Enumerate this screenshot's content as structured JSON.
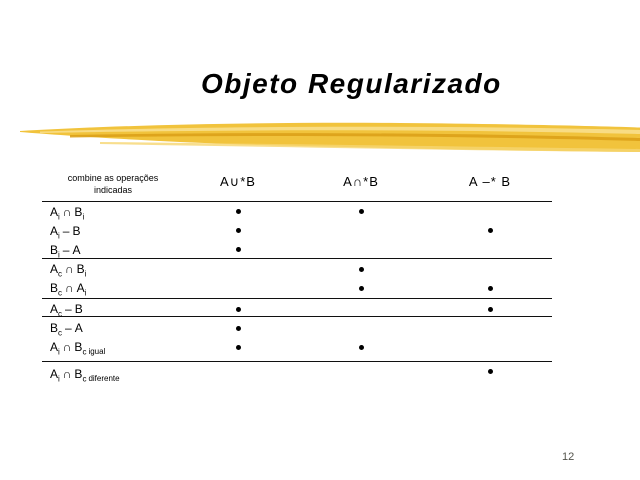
{
  "title": "Objeto Regularizado",
  "page_number": "12",
  "colors": {
    "brush_gold": "#F1C33C",
    "brush_highlight": "#F8DF8C",
    "brush_dark": "#DCA118",
    "brush_pale": "#F6D671",
    "page_number_gray": "#52524A",
    "text_black": "#000000"
  },
  "table": {
    "col1_header_line1": "combine as operações",
    "col1_header_line2": "indicadas",
    "col_headers": [
      "A∪*B",
      "A∩*B",
      "A –* B"
    ],
    "rows": [
      {
        "parts": [
          [
            "A",
            "i"
          ],
          [
            "∩",
            ""
          ],
          [
            "B",
            "i"
          ]
        ],
        "note": "",
        "dots": [
          true,
          true,
          false
        ]
      },
      {
        "parts": [
          [
            "A",
            "i"
          ],
          [
            "–",
            ""
          ],
          [
            "B",
            ""
          ]
        ],
        "note": "",
        "dots": [
          true,
          false,
          true
        ]
      },
      {
        "parts": [
          [
            "B",
            "i"
          ],
          [
            "–",
            ""
          ],
          [
            "A",
            ""
          ]
        ],
        "note": "",
        "dots": [
          true,
          false,
          false
        ]
      },
      {
        "parts": [
          [
            "A",
            "c"
          ],
          [
            "∩",
            ""
          ],
          [
            "B",
            "i"
          ]
        ],
        "note": "",
        "dots": [
          false,
          true,
          false
        ]
      },
      {
        "parts": [
          [
            "B",
            "c"
          ],
          [
            "∩",
            ""
          ],
          [
            "A",
            "i"
          ]
        ],
        "note": "",
        "dots": [
          false,
          true,
          true
        ]
      },
      {
        "parts": [
          [
            "A",
            "c"
          ],
          [
            "–",
            ""
          ],
          [
            "B",
            ""
          ]
        ],
        "note": "",
        "dots": [
          true,
          false,
          true
        ]
      },
      {
        "parts": [
          [
            "B",
            "c"
          ],
          [
            "–",
            ""
          ],
          [
            "A",
            ""
          ]
        ],
        "note": "",
        "dots": [
          true,
          false,
          false
        ]
      },
      {
        "parts": [
          [
            "A",
            "i"
          ],
          [
            "∩",
            ""
          ],
          [
            "B",
            "c"
          ]
        ],
        "note": "igual",
        "dots": [
          true,
          true,
          false
        ]
      },
      {
        "parts": [
          [
            "A",
            "i"
          ],
          [
            "∩",
            ""
          ],
          [
            "B",
            "c"
          ]
        ],
        "note": "diferente",
        "dots": [
          false,
          false,
          true
        ]
      }
    ]
  }
}
